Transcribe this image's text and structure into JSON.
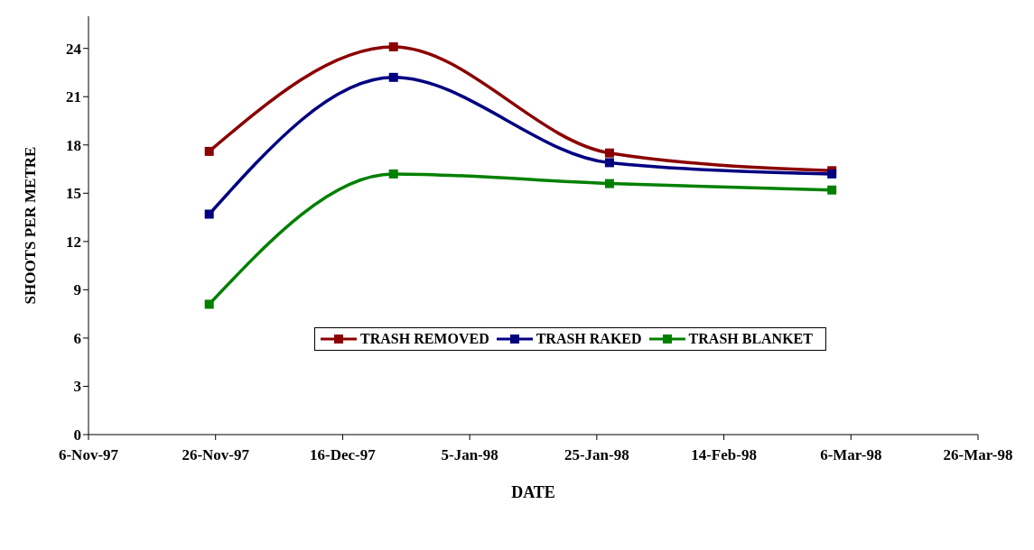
{
  "chart_data": {
    "type": "line",
    "xlabel": "DATE",
    "ylabel": "SHOOTS PER METRE",
    "x": [
      "1997-11-25",
      "1997-12-24",
      "1998-01-27",
      "1998-03-03"
    ],
    "series": [
      {
        "name": "TRASH REMOVED",
        "color": "#8b0000",
        "values": [
          17.6,
          24.1,
          17.5,
          16.4
        ]
      },
      {
        "name": "TRASH RAKED",
        "color": "#000080",
        "values": [
          13.7,
          22.2,
          16.9,
          16.2
        ]
      },
      {
        "name": "TRASH BLANKET",
        "color": "#008000",
        "values": [
          8.1,
          16.2,
          15.6,
          15.2
        ]
      }
    ],
    "xlim": [
      "1997-11-06",
      "1998-03-26"
    ],
    "xticks": [
      {
        "value": "1997-11-06",
        "label": "6-Nov-97"
      },
      {
        "value": "1997-11-26",
        "label": "26-Nov-97"
      },
      {
        "value": "1997-12-16",
        "label": "16-Dec-97"
      },
      {
        "value": "1998-01-05",
        "label": "5-Jan-98"
      },
      {
        "value": "1998-01-25",
        "label": "25-Jan-98"
      },
      {
        "value": "1998-02-14",
        "label": "14-Feb-98"
      },
      {
        "value": "1998-03-06",
        "label": "6-Mar-98"
      },
      {
        "value": "1998-03-26",
        "label": "26-Mar-98"
      }
    ],
    "ylim": [
      0,
      26
    ],
    "yticks": [
      0,
      3,
      6,
      9,
      12,
      15,
      18,
      21,
      24
    ],
    "grid": false,
    "legend": "center",
    "marker": "square",
    "line_style": "solid"
  }
}
